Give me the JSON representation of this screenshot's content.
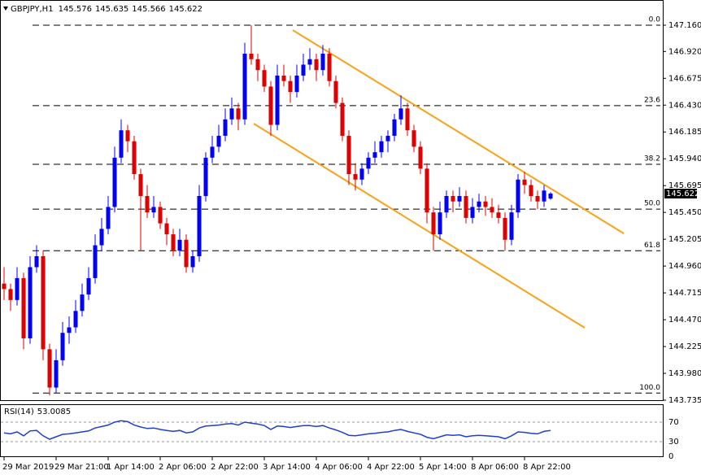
{
  "chart_data": [
    {
      "type": "candlestick",
      "symbol": "GBPJPY,H1",
      "categories": [
        "29 Mar 2019",
        null,
        null,
        null,
        null,
        null,
        null,
        null,
        "29 Mar 21:00",
        null,
        null,
        null,
        null,
        null,
        null,
        null,
        "1 Apr 14:00",
        null,
        null,
        null,
        null,
        null,
        null,
        null,
        "2 Apr 06:00",
        null,
        null,
        null,
        null,
        null,
        null,
        null,
        "2 Apr 22:00",
        null,
        null,
        null,
        null,
        null,
        null,
        null,
        "3 Apr 14:00",
        null,
        null,
        null,
        null,
        null,
        null,
        null,
        "4 Apr 06:00",
        null,
        null,
        null,
        null,
        null,
        null,
        null,
        "4 Apr 22:00",
        null,
        null,
        null,
        null,
        null,
        null,
        null,
        "5 Apr 14:00",
        null,
        null,
        null,
        null,
        null,
        null,
        null,
        "8 Apr 06:00",
        null,
        null,
        null,
        null,
        null,
        null,
        null,
        "8 Apr 22:00",
        null,
        null,
        null,
        null
      ],
      "open": [
        144.8,
        144.75,
        144.65,
        144.85,
        144.3,
        144.95,
        145.05,
        144.2,
        143.85,
        144.1,
        144.35,
        144.4,
        144.55,
        144.7,
        144.85,
        145.15,
        145.3,
        145.5,
        145.95,
        146.2,
        146.1,
        145.8,
        145.6,
        145.45,
        145.5,
        145.35,
        145.25,
        145.1,
        145.2,
        144.95,
        145.05,
        145.6,
        145.95,
        146.05,
        146.15,
        146.3,
        146.4,
        146.3,
        146.9,
        146.85,
        146.75,
        146.6,
        146.25,
        146.7,
        146.65,
        146.55,
        146.7,
        146.8,
        146.85,
        146.75,
        146.9,
        146.65,
        146.45,
        146.15,
        145.8,
        145.75,
        145.85,
        145.95,
        146.0,
        146.1,
        146.15,
        146.3,
        146.4,
        146.2,
        146.05,
        145.85,
        145.45,
        145.25,
        145.45,
        145.6,
        145.55,
        145.6,
        145.4,
        145.5,
        145.55,
        145.5,
        145.45,
        145.4,
        145.2,
        145.45,
        145.75,
        145.7,
        145.6,
        145.55,
        145.576
      ],
      "high": [
        144.95,
        144.8,
        144.95,
        144.9,
        145.05,
        145.15,
        145.1,
        144.25,
        144.2,
        144.45,
        144.5,
        144.65,
        144.8,
        144.95,
        145.25,
        145.4,
        145.6,
        146.05,
        146.3,
        146.25,
        146.15,
        145.85,
        145.7,
        145.6,
        145.55,
        145.4,
        145.3,
        145.3,
        145.25,
        145.1,
        145.7,
        146.0,
        146.15,
        146.25,
        146.4,
        146.5,
        146.45,
        147.0,
        147.16,
        146.9,
        146.8,
        146.65,
        146.8,
        146.8,
        146.7,
        146.8,
        146.9,
        146.95,
        146.9,
        146.98,
        146.95,
        146.7,
        146.5,
        146.2,
        145.9,
        145.9,
        146.0,
        146.1,
        146.15,
        146.2,
        146.35,
        146.52,
        146.45,
        146.25,
        146.1,
        145.9,
        145.5,
        145.55,
        145.65,
        145.65,
        145.68,
        145.65,
        145.58,
        145.62,
        145.6,
        145.58,
        145.52,
        145.45,
        145.52,
        145.8,
        145.82,
        145.75,
        145.65,
        145.7,
        145.635
      ],
      "low": [
        144.65,
        144.55,
        144.6,
        144.2,
        144.25,
        144.9,
        144.1,
        143.78,
        143.8,
        144.05,
        144.25,
        144.35,
        144.5,
        144.65,
        144.8,
        145.1,
        145.25,
        145.45,
        145.9,
        146.0,
        145.75,
        145.1,
        145.4,
        145.4,
        145.3,
        145.15,
        145.05,
        145.05,
        144.9,
        144.9,
        145.0,
        145.55,
        145.9,
        146.0,
        146.1,
        146.25,
        146.2,
        146.25,
        146.8,
        146.65,
        146.55,
        146.15,
        146.2,
        146.6,
        146.45,
        146.5,
        146.65,
        146.75,
        146.65,
        146.7,
        146.6,
        146.4,
        146.1,
        145.7,
        145.65,
        145.7,
        145.8,
        145.9,
        145.95,
        146.0,
        146.1,
        146.25,
        146.15,
        146.0,
        145.8,
        145.35,
        145.1,
        145.2,
        145.4,
        145.45,
        145.5,
        145.35,
        145.35,
        145.45,
        145.42,
        145.4,
        145.35,
        145.1,
        145.15,
        145.4,
        145.62,
        145.55,
        145.48,
        145.5,
        145.566
      ],
      "close": [
        144.75,
        144.65,
        144.85,
        144.3,
        144.95,
        145.05,
        144.2,
        143.85,
        144.1,
        144.35,
        144.4,
        144.55,
        144.7,
        144.85,
        145.15,
        145.3,
        145.5,
        145.95,
        146.2,
        146.1,
        145.8,
        145.6,
        145.45,
        145.5,
        145.35,
        145.25,
        145.1,
        145.2,
        144.95,
        145.05,
        145.6,
        145.95,
        146.05,
        146.15,
        146.3,
        146.4,
        146.3,
        146.9,
        146.85,
        146.75,
        146.6,
        146.25,
        146.7,
        146.65,
        146.55,
        146.7,
        146.8,
        146.85,
        146.75,
        146.9,
        146.65,
        146.45,
        146.15,
        145.8,
        145.75,
        145.85,
        145.95,
        146.0,
        146.1,
        146.15,
        146.3,
        146.4,
        146.2,
        146.05,
        145.85,
        145.45,
        145.25,
        145.45,
        145.6,
        145.55,
        145.6,
        145.4,
        145.5,
        145.55,
        145.5,
        145.45,
        145.4,
        145.2,
        145.45,
        145.75,
        145.7,
        145.6,
        145.55,
        145.65,
        145.622
      ],
      "up_color": "#0000ff",
      "down_color": "#e00000",
      "ylim": [
        143.735,
        147.368
      ],
      "yticks": [
        {
          "value": 147.16,
          "label": "147.160"
        },
        {
          "value": 146.92,
          "label": "146.920"
        },
        {
          "value": 146.675,
          "label": "146.675"
        },
        {
          "value": 146.43,
          "label": "146.430"
        },
        {
          "value": 146.185,
          "label": "146.185"
        },
        {
          "value": 145.94,
          "label": "145.940"
        },
        {
          "value": 145.695,
          "label": "145.695"
        },
        {
          "value": 145.45,
          "label": "145.450"
        },
        {
          "value": 145.205,
          "label": "145.205"
        },
        {
          "value": 144.96,
          "label": "144.960"
        },
        {
          "value": 144.715,
          "label": "144.715"
        },
        {
          "value": 144.47,
          "label": "144.470"
        },
        {
          "value": 144.225,
          "label": "144.225"
        },
        {
          "value": 143.98,
          "label": "143.980"
        },
        {
          "value": 143.735,
          "label": "143.735"
        }
      ],
      "fib_levels": [
        {
          "label": "0.0",
          "price": 147.16
        },
        {
          "label": "23.6",
          "price": 146.425
        },
        {
          "label": "38.2",
          "price": 145.89
        },
        {
          "label": "50.0",
          "price": 145.48
        },
        {
          "label": "61.8",
          "price": 145.1
        },
        {
          "label": "100.0",
          "price": 143.8
        }
      ],
      "channel": {
        "upper": [
          147.115,
          145.258
        ],
        "lower": [
          146.261,
          144.396
        ],
        "color": "#f7a21b"
      }
    },
    {
      "type": "line",
      "indicator": "RSI(14)",
      "series": [
        {
          "name": "RSI(14)",
          "color": "#1f3fd0",
          "values": [
            48,
            46,
            50,
            42,
            52,
            53,
            42,
            35,
            40,
            45,
            46,
            48,
            50,
            52,
            58,
            61,
            64,
            70,
            73,
            71,
            64,
            60,
            57,
            58,
            55,
            53,
            51,
            53,
            48,
            50,
            58,
            62,
            63,
            64,
            66,
            67,
            64,
            70,
            68,
            66,
            63,
            55,
            62,
            61,
            59,
            61,
            63,
            63,
            61,
            63,
            58,
            54,
            49,
            43,
            42,
            44,
            46,
            47,
            49,
            50,
            53,
            55,
            51,
            48,
            45,
            39,
            36,
            40,
            44,
            43,
            44,
            40,
            42,
            43,
            42,
            41,
            40,
            36,
            42,
            50,
            49,
            47,
            46,
            51,
            53.0085
          ]
        }
      ],
      "ylim": [
        0,
        100
      ],
      "yticks": [
        70,
        30,
        0
      ]
    }
  ]
}
